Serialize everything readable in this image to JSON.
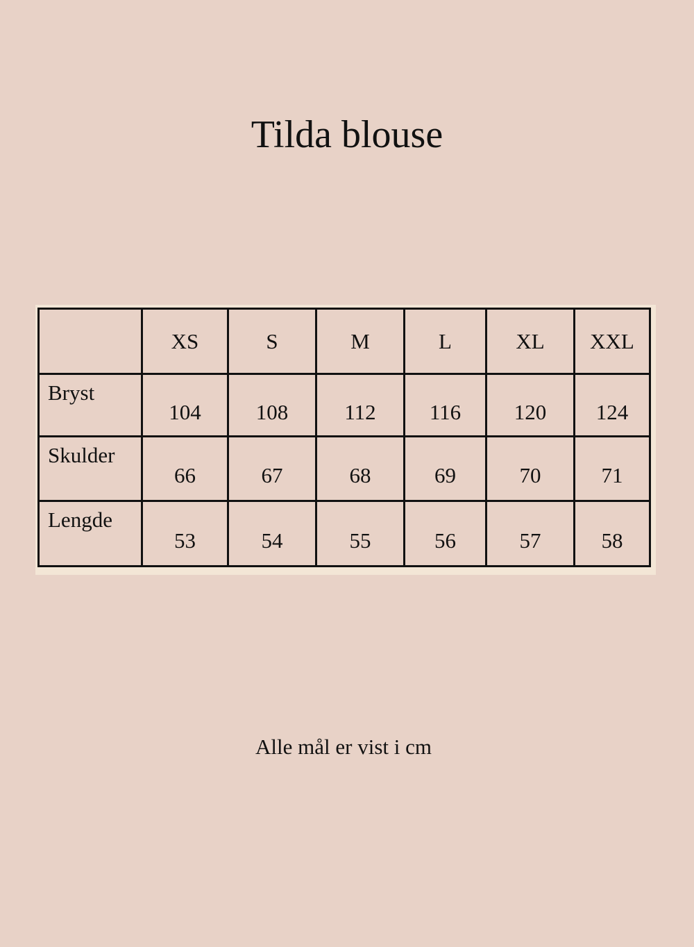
{
  "title": "Tilda blouse",
  "table": {
    "headers": [
      "",
      "XS",
      "S",
      "M",
      "L",
      "XL",
      "XXL"
    ],
    "rows": [
      {
        "label": "Bryst",
        "values": [
          "104",
          "108",
          "112",
          "116",
          "120",
          "124"
        ]
      },
      {
        "label": "Skulder",
        "values": [
          "66",
          "67",
          "68",
          "69",
          "70",
          "71"
        ]
      },
      {
        "label": "Lengde",
        "values": [
          "53",
          "54",
          "55",
          "56",
          "57",
          "58"
        ]
      }
    ]
  },
  "note": "Alle mål er vist i cm"
}
